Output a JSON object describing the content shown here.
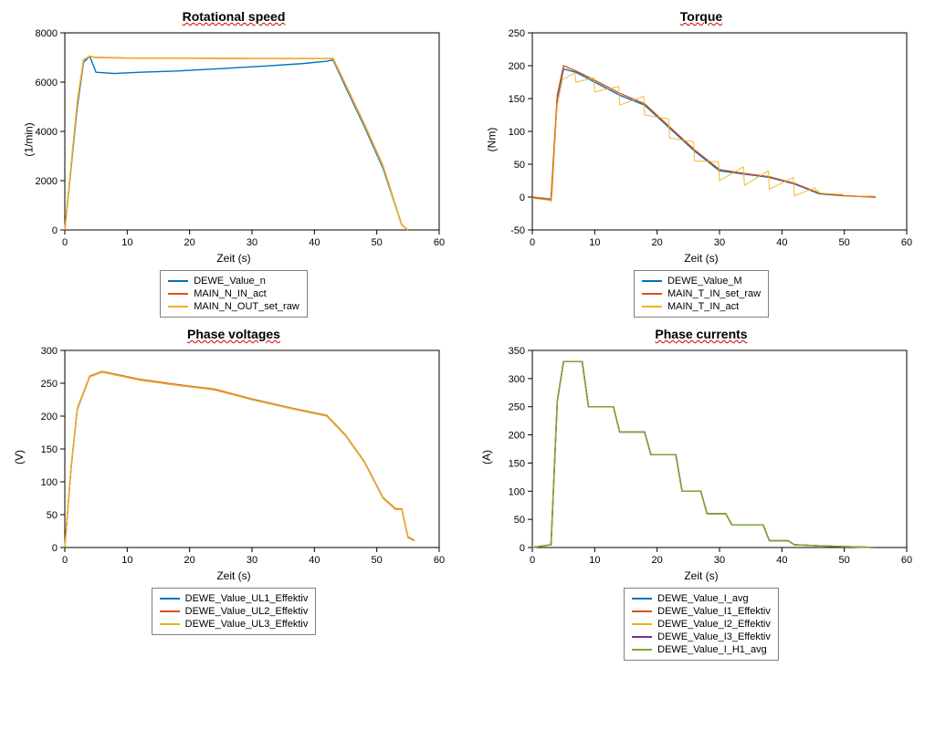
{
  "colors": {
    "blue": "#0072bd",
    "red": "#d95319",
    "orange": "#edb120",
    "purple": "#7e2f8e",
    "green": "#77ac30",
    "axis": "#000000",
    "bg": "#ffffff"
  },
  "font": {
    "family": "Arial",
    "title_size": 14,
    "label_size": 12,
    "tick_size": 11
  },
  "panels": [
    {
      "id": "rotspeed",
      "title": "Rotational speed",
      "xlabel": "Zeit (s)",
      "ylabel": "(1/min)",
      "xlim": [
        0,
        60
      ],
      "xtick_step": 10,
      "ylim": [
        0,
        8000
      ],
      "ytick_step": 2000,
      "series": [
        {
          "name": "DEWE_Value_n",
          "color_key": "blue",
          "x": [
            0,
            1,
            2,
            3,
            4,
            5,
            8,
            12,
            18,
            25,
            32,
            38,
            42,
            43,
            45,
            48,
            51,
            54,
            55
          ],
          "y": [
            0,
            2500,
            5000,
            6800,
            7050,
            6400,
            6350,
            6400,
            6450,
            6550,
            6650,
            6750,
            6850,
            6900,
            5800,
            4200,
            2500,
            200,
            0
          ]
        },
        {
          "name": "MAIN_N_IN_act",
          "color_key": "red",
          "x": [
            0,
            1,
            2,
            3,
            4,
            5,
            10,
            20,
            30,
            42,
            43,
            45,
            48,
            51,
            54,
            55
          ],
          "y": [
            0,
            2600,
            5200,
            6900,
            7050,
            7000,
            6980,
            6970,
            6960,
            6960,
            6960,
            5900,
            4300,
            2600,
            200,
            0
          ]
        },
        {
          "name": "MAIN_N_OUT_set_raw",
          "color_key": "orange",
          "x": [
            0,
            1,
            2,
            3,
            4,
            5,
            10,
            20,
            30,
            42,
            43,
            45,
            48,
            51,
            54,
            55
          ],
          "y": [
            0,
            2600,
            5200,
            6900,
            7050,
            6990,
            6975,
            6965,
            6955,
            6955,
            6955,
            5880,
            4280,
            2580,
            190,
            0
          ]
        }
      ]
    },
    {
      "id": "torque",
      "title": "Torque",
      "xlabel": "Zeit (s)",
      "ylabel": "(Nm)",
      "xlim": [
        0,
        60
      ],
      "xtick_step": 10,
      "ylim": [
        -50,
        250
      ],
      "ytick_step": 50,
      "series": [
        {
          "name": "DEWE_Value_M",
          "color_key": "blue",
          "x": [
            0,
            3,
            4,
            5,
            7,
            10,
            14,
            18,
            22,
            26,
            30,
            34,
            38,
            42,
            46,
            50,
            55
          ],
          "y": [
            0,
            -5,
            150,
            195,
            190,
            175,
            155,
            140,
            105,
            70,
            40,
            35,
            30,
            20,
            5,
            2,
            0
          ]
        },
        {
          "name": "MAIN_T_IN_set_raw",
          "color_key": "red",
          "x": [
            0,
            3,
            4,
            5,
            7,
            10,
            14,
            18,
            22,
            26,
            30,
            34,
            38,
            42,
            46,
            50,
            55
          ],
          "y": [
            0,
            -3,
            155,
            200,
            192,
            178,
            158,
            142,
            107,
            72,
            42,
            36,
            31,
            21,
            6,
            2,
            0
          ]
        },
        {
          "name": "MAIN_T_IN_act",
          "color_key": "orange",
          "noisy": true,
          "noise_amp": 40,
          "x": [
            0,
            3,
            4,
            5,
            7,
            10,
            14,
            18,
            22,
            26,
            30,
            34,
            38,
            42,
            46,
            50,
            55
          ],
          "y": [
            0,
            -5,
            160,
            200,
            195,
            180,
            160,
            145,
            110,
            75,
            45,
            38,
            32,
            22,
            8,
            3,
            0
          ]
        }
      ]
    },
    {
      "id": "voltages",
      "title": "Phase voltages",
      "xlabel": "Zeit (s)",
      "ylabel": "(V)",
      "xlim": [
        0,
        60
      ],
      "xtick_step": 10,
      "ylim": [
        0,
        300
      ],
      "ytick_step": 50,
      "series": [
        {
          "name": "DEWE_Value_UL1_Effektiv",
          "color_key": "blue",
          "x": [
            0,
            1,
            2,
            4,
            6,
            8,
            12,
            18,
            24,
            30,
            36,
            42,
            45,
            48,
            51,
            53,
            54,
            55,
            56
          ],
          "y": [
            0,
            120,
            210,
            260,
            267,
            263,
            255,
            247,
            240,
            225,
            212,
            200,
            170,
            130,
            75,
            58,
            58,
            15,
            10
          ]
        },
        {
          "name": "DEWE_Value_UL2_Effektiv",
          "color_key": "red",
          "x": [
            0,
            1,
            2,
            4,
            6,
            8,
            12,
            18,
            24,
            30,
            36,
            42,
            45,
            48,
            51,
            53,
            54,
            55,
            56
          ],
          "y": [
            0,
            122,
            212,
            261,
            268,
            264,
            256,
            248,
            241,
            226,
            213,
            201,
            171,
            131,
            76,
            59,
            59,
            16,
            11
          ]
        },
        {
          "name": "DEWE_Value_UL3_Effektiv",
          "color_key": "orange",
          "x": [
            0,
            1,
            2,
            4,
            6,
            8,
            12,
            18,
            24,
            30,
            36,
            42,
            45,
            48,
            51,
            53,
            54,
            55,
            56
          ],
          "y": [
            0,
            121,
            211,
            260,
            267,
            263,
            255,
            247,
            240,
            225,
            212,
            200,
            170,
            130,
            75,
            58,
            58,
            15,
            10
          ]
        }
      ]
    },
    {
      "id": "currents",
      "title": "Phase currents",
      "xlabel": "Zeit (s)",
      "ylabel": "(A)",
      "xlim": [
        0,
        60
      ],
      "xtick_step": 10,
      "ylim": [
        0,
        350
      ],
      "ytick_step": 50,
      "series": [
        {
          "name": "DEWE_Value_I_avg",
          "color_key": "blue",
          "x": [
            0,
            3,
            4,
            5,
            8,
            9,
            10,
            13,
            14,
            15,
            18,
            19,
            20,
            23,
            24,
            27,
            28,
            31,
            32,
            37,
            38,
            41,
            42,
            46,
            55
          ],
          "y": [
            0,
            5,
            260,
            330,
            330,
            250,
            250,
            250,
            205,
            205,
            205,
            165,
            165,
            165,
            100,
            100,
            60,
            60,
            40,
            40,
            12,
            12,
            5,
            3,
            0
          ]
        },
        {
          "name": "DEWE_Value_I1_Effektiv",
          "color_key": "red",
          "x": [
            0,
            3,
            4,
            5,
            8,
            9,
            10,
            13,
            14,
            15,
            18,
            19,
            20,
            23,
            24,
            27,
            28,
            31,
            32,
            37,
            38,
            41,
            42,
            46,
            55
          ],
          "y": [
            0,
            5,
            260,
            330,
            330,
            250,
            250,
            250,
            205,
            205,
            205,
            165,
            165,
            165,
            100,
            100,
            60,
            60,
            40,
            40,
            12,
            12,
            5,
            3,
            0
          ]
        },
        {
          "name": "DEWE_Value_I2_Effektiv",
          "color_key": "orange",
          "x": [
            0,
            3,
            4,
            5,
            8,
            9,
            10,
            13,
            14,
            15,
            18,
            19,
            20,
            23,
            24,
            27,
            28,
            31,
            32,
            37,
            38,
            41,
            42,
            46,
            55
          ],
          "y": [
            0,
            5,
            260,
            330,
            330,
            250,
            250,
            250,
            205,
            205,
            205,
            165,
            165,
            165,
            100,
            100,
            60,
            60,
            40,
            40,
            12,
            12,
            5,
            3,
            0
          ]
        },
        {
          "name": "DEWE_Value_I3_Effektiv",
          "color_key": "purple",
          "x": [
            0,
            3,
            4,
            5,
            8,
            9,
            10,
            13,
            14,
            15,
            18,
            19,
            20,
            23,
            24,
            27,
            28,
            31,
            32,
            37,
            38,
            41,
            42,
            46,
            55
          ],
          "y": [
            0,
            5,
            260,
            330,
            330,
            250,
            250,
            250,
            205,
            205,
            205,
            165,
            165,
            165,
            100,
            100,
            60,
            60,
            40,
            40,
            12,
            12,
            5,
            3,
            0
          ]
        },
        {
          "name": "DEWE_Value_I_H1_avg",
          "color_key": "green",
          "x": [
            0,
            3,
            4,
            5,
            8,
            9,
            10,
            13,
            14,
            15,
            18,
            19,
            20,
            23,
            24,
            27,
            28,
            31,
            32,
            37,
            38,
            41,
            42,
            46,
            55
          ],
          "y": [
            0,
            5,
            260,
            330,
            330,
            250,
            250,
            250,
            205,
            205,
            205,
            165,
            165,
            165,
            100,
            100,
            60,
            60,
            40,
            40,
            12,
            12,
            5,
            3,
            0
          ]
        }
      ]
    }
  ]
}
